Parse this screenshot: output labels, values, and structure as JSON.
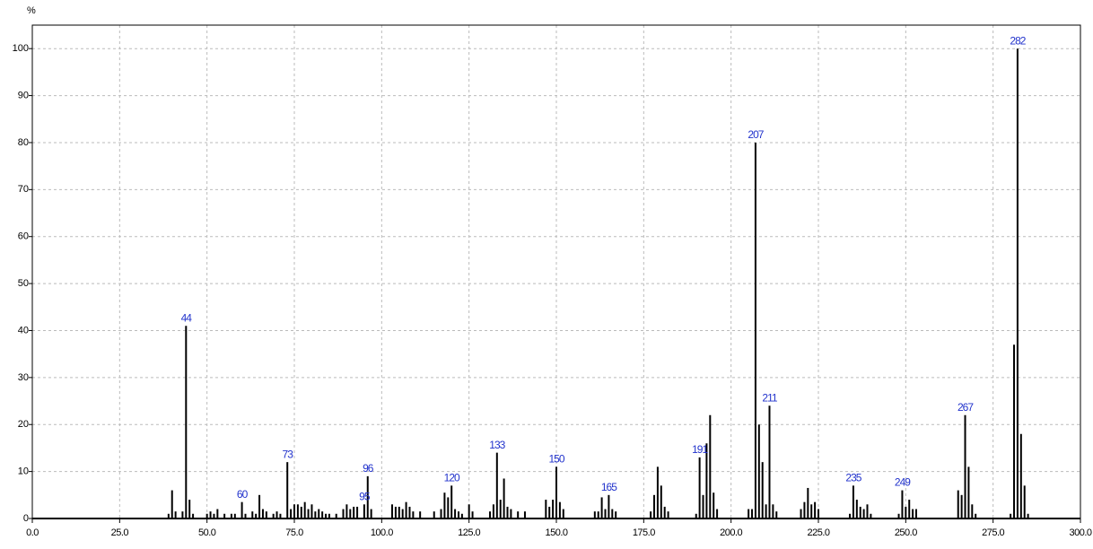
{
  "chart_data": {
    "type": "stick",
    "y_label": "%",
    "x": [
      39,
      40,
      41,
      43,
      44,
      45,
      46,
      50,
      51,
      52,
      53,
      55,
      57,
      58,
      60,
      61,
      63,
      64,
      65,
      66,
      67,
      69,
      70,
      71,
      73,
      74,
      75,
      76,
      77,
      78,
      79,
      80,
      81,
      82,
      83,
      84,
      85,
      87,
      89,
      90,
      91,
      92,
      93,
      95,
      96,
      97,
      103,
      104,
      105,
      106,
      107,
      108,
      109,
      111,
      115,
      117,
      118,
      119,
      120,
      121,
      122,
      123,
      125,
      126,
      131,
      132,
      133,
      134,
      135,
      136,
      137,
      139,
      141,
      147,
      148,
      149,
      150,
      151,
      152,
      161,
      162,
      163,
      164,
      165,
      166,
      167,
      177,
      178,
      179,
      180,
      181,
      182,
      190,
      191,
      192,
      193,
      194,
      195,
      196,
      205,
      206,
      207,
      208,
      209,
      210,
      211,
      212,
      213,
      220,
      221,
      222,
      223,
      224,
      225,
      234,
      235,
      236,
      237,
      238,
      239,
      240,
      248,
      249,
      250,
      251,
      252,
      253,
      265,
      266,
      267,
      268,
      269,
      270,
      280,
      281,
      282,
      283,
      284,
      285
    ],
    "values": [
      1,
      6,
      1.5,
      1.5,
      41,
      4,
      1,
      1,
      1.5,
      1,
      2,
      1,
      1,
      1,
      3.5,
      1,
      1.5,
      1,
      5,
      2,
      1.5,
      1,
      1.5,
      1,
      12,
      2,
      3,
      3,
      2.5,
      3.5,
      2,
      3,
      1.5,
      2,
      1.5,
      1,
      1,
      1,
      2,
      3,
      2,
      2.5,
      2.5,
      3,
      9,
      2,
      3,
      2.5,
      2.5,
      2,
      3.5,
      2.5,
      1.5,
      1.5,
      1.5,
      2,
      5.5,
      4.5,
      7,
      2,
      1.5,
      1,
      3,
      1.5,
      1.5,
      3,
      14,
      4,
      8.5,
      2.5,
      2,
      1.5,
      1.5,
      4,
      2.5,
      4,
      11,
      3.5,
      2,
      1.5,
      1.5,
      4.5,
      2,
      5,
      2,
      1.5,
      1.5,
      5,
      11,
      7,
      2.5,
      1.5,
      1,
      13,
      5,
      16,
      22,
      5.5,
      2,
      2,
      2,
      80,
      20,
      12,
      3,
      24,
      3,
      1.5,
      2,
      3.5,
      6.5,
      3,
      3.5,
      2,
      1,
      7,
      4,
      2.5,
      2,
      3,
      1,
      1,
      6,
      2.5,
      4,
      2,
      2,
      6,
      5,
      22,
      11,
      3,
      1,
      1,
      37,
      100,
      18,
      7,
      1
    ],
    "color": "#000000",
    "annotations": [
      44,
      60,
      73,
      95,
      96,
      120,
      133,
      150,
      165,
      191,
      207,
      211,
      235,
      249,
      267,
      282
    ],
    "annotation_color": "#2233cc",
    "xlim": [
      0,
      300
    ],
    "xticks": [
      {
        "value": 0,
        "label": "0.0"
      },
      {
        "value": 25,
        "label": "25.0"
      },
      {
        "value": 50,
        "label": "50.0"
      },
      {
        "value": 75,
        "label": "75.0"
      },
      {
        "value": 100,
        "label": "100.0"
      },
      {
        "value": 125,
        "label": "125.0"
      },
      {
        "value": 150,
        "label": "150.0"
      },
      {
        "value": 175,
        "label": "175.0"
      },
      {
        "value": 200,
        "label": "200.0"
      },
      {
        "value": 225,
        "label": "225.0"
      },
      {
        "value": 250,
        "label": "250.0"
      },
      {
        "value": 275,
        "label": "275.0"
      },
      {
        "value": 300,
        "label": "300.0"
      }
    ],
    "ylim": [
      0,
      105
    ],
    "yticks": [
      0,
      10,
      20,
      30,
      40,
      50,
      60,
      70,
      80,
      90,
      100
    ],
    "grid": true
  }
}
